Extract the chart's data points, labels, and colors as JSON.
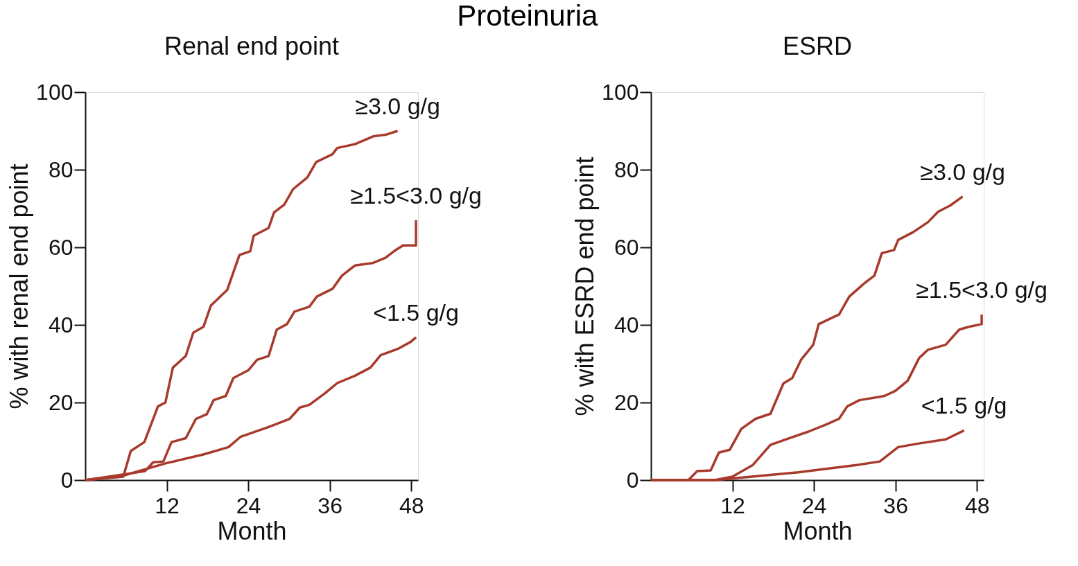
{
  "chart_data": [
    {
      "type": "line",
      "title": "Renal end point",
      "annotations": [
        "Proteinuria"
      ],
      "xlabel": "Month",
      "ylabel": "% with renal end point",
      "xlim": [
        0,
        49
      ],
      "xticks": [
        12,
        24,
        36,
        48
      ],
      "ylim": [
        0,
        100
      ],
      "yticks": [
        0,
        20,
        40,
        60,
        80,
        100
      ],
      "grid": false,
      "legend": false,
      "marker": "none",
      "line_style": "solid",
      "series": [
        {
          "name": "≥3.0 g/g",
          "color": "#a83a2c",
          "x": [
            0,
            5.6,
            6.7,
            8.7,
            10.7,
            11.8,
            12.9,
            14.8,
            15.9,
            17.4,
            18.5,
            20.9,
            22.7,
            24.3,
            24.8,
            27,
            27.8,
            29.3,
            30.6,
            32.7,
            34,
            36.4,
            37.1,
            39.7,
            42.4,
            44.2,
            46
          ],
          "values": [
            0,
            0.9,
            7.5,
            9.8,
            19,
            20,
            29,
            32,
            38,
            39.5,
            45,
            49,
            58,
            59,
            63,
            65,
            69,
            71,
            75,
            78,
            82,
            84,
            85.6,
            86.6,
            88.6,
            89,
            90
          ]
        },
        {
          "name": "≥1.5<3.0 g/g",
          "color": "#a83a2c",
          "x": [
            0,
            8.8,
            10,
            11.5,
            12.7,
            14.8,
            16.3,
            17.9,
            18.9,
            20.7,
            21.8,
            24,
            25.3,
            27,
            28.2,
            29.7,
            30.8,
            33,
            34.1,
            36.4,
            37.8,
            39.7,
            42.4,
            44.2,
            45.7,
            46.8,
            48.7,
            48.7
          ],
          "values": [
            0,
            2.3,
            4.6,
            4.8,
            9.8,
            10.8,
            15.8,
            17,
            20.6,
            21.7,
            26.3,
            28.3,
            31,
            32,
            38.8,
            40.2,
            43.4,
            44.7,
            47.3,
            49.3,
            52.7,
            55.3,
            56,
            57.3,
            59.3,
            60.5,
            60.5,
            67
          ]
        },
        {
          "name": "<1.5 g/g",
          "color": "#a83a2c",
          "x": [
            0,
            5.1,
            11.8,
            17.4,
            21.1,
            22.9,
            27,
            30.1,
            31.6,
            33,
            35.3,
            37.1,
            39.7,
            42,
            43.5,
            46,
            47.9,
            48.7
          ],
          "values": [
            0,
            0.9,
            4.3,
            6.6,
            8.5,
            11.2,
            13.7,
            15.8,
            18.7,
            19.4,
            22.4,
            25,
            26.9,
            29,
            32.2,
            33.8,
            35.6,
            36.8
          ]
        }
      ]
    },
    {
      "type": "line",
      "title": "ESRD",
      "xlabel": "Month",
      "ylabel": "% with ESRD end point",
      "xlim": [
        0,
        49
      ],
      "xticks": [
        12,
        24,
        36,
        48
      ],
      "ylim": [
        0,
        100
      ],
      "yticks": [
        0,
        20,
        40,
        60,
        80,
        100
      ],
      "grid": false,
      "legend": false,
      "marker": "none",
      "line_style": "solid",
      "series": [
        {
          "name": "≥3.0 g/g",
          "color": "#a83a2c",
          "x": [
            0,
            5.5,
            6.8,
            8.8,
            10,
            11.6,
            13.3,
            15.4,
            17.6,
            19.5,
            20.8,
            22.1,
            23.9,
            24.7,
            27.7,
            29.2,
            31.4,
            32.9,
            34,
            35.8,
            36.4,
            38.6,
            40.8,
            42.3,
            44.1,
            45.9
          ],
          "values": [
            0,
            0,
            2.3,
            2.5,
            7.1,
            7.8,
            13.2,
            15.8,
            17.1,
            24.9,
            26.3,
            31,
            34.9,
            40.2,
            42.7,
            47.3,
            50.7,
            52.7,
            58.5,
            59.3,
            61.9,
            63.9,
            66.5,
            69.2,
            70.8,
            73.1
          ]
        },
        {
          "name": "≥1.5<3.0 g/g",
          "color": "#a83a2c",
          "x": [
            0,
            9.4,
            12,
            15,
            17.6,
            21,
            23.2,
            25.9,
            27.7,
            28.9,
            30.7,
            34.4,
            36,
            37.8,
            39.5,
            40.8,
            43.4,
            45.4,
            46.8,
            48.7,
            48.7
          ],
          "values": [
            0,
            0,
            0.9,
            3.9,
            9.1,
            11.2,
            12.5,
            14.4,
            15.8,
            19,
            20.6,
            21.7,
            23,
            25.6,
            31.5,
            33.6,
            34.9,
            38.8,
            39.5,
            40.2,
            42.7
          ]
        },
        {
          "name": "<1.5 g/g",
          "color": "#a83a2c",
          "x": [
            0,
            9.4,
            21.7,
            30.3,
            33.7,
            36.4,
            39.3,
            43.4,
            46.1
          ],
          "values": [
            0,
            0,
            2,
            3.9,
            4.8,
            8.5,
            9.4,
            10.5,
            12.8
          ]
        }
      ]
    }
  ]
}
